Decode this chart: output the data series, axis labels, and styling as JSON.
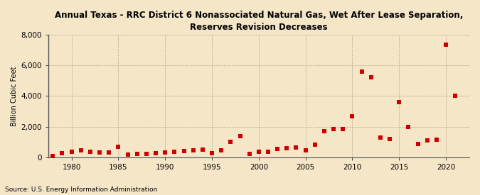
{
  "title": "Annual Texas - RRC District 6 Nonassociated Natural Gas, Wet After Lease Separation,\nReserves Revision Decreases",
  "ylabel": "Billion Cubic Feet",
  "source": "Source: U.S. Energy Information Administration",
  "background_color": "#f5e6c8",
  "plot_background_color": "#f5e6c8",
  "marker_color": "#cc0000",
  "marker": "s",
  "marker_size": 4,
  "xlim": [
    1977.5,
    2022.5
  ],
  "ylim": [
    0,
    8000
  ],
  "yticks": [
    0,
    2000,
    4000,
    6000,
    8000
  ],
  "xticks": [
    1980,
    1985,
    1990,
    1995,
    2000,
    2005,
    2010,
    2015,
    2020
  ],
  "years": [
    1978,
    1979,
    1980,
    1981,
    1982,
    1983,
    1984,
    1985,
    1986,
    1987,
    1988,
    1989,
    1990,
    1991,
    1992,
    1993,
    1994,
    1995,
    1996,
    1997,
    1998,
    1999,
    2000,
    2001,
    2002,
    2003,
    2004,
    2005,
    2006,
    2007,
    2008,
    2009,
    2010,
    2011,
    2012,
    2013,
    2014,
    2015,
    2016,
    2017,
    2018,
    2019,
    2020,
    2021
  ],
  "values": [
    100,
    280,
    370,
    430,
    350,
    310,
    290,
    680,
    180,
    230,
    240,
    280,
    310,
    360,
    420,
    450,
    500,
    250,
    450,
    1000,
    1360,
    210,
    340,
    370,
    540,
    600,
    650,
    470,
    800,
    1700,
    1820,
    1860,
    2650,
    5600,
    5200,
    1300,
    1200,
    3600,
    2000,
    850,
    1100,
    1150,
    7350,
    4000
  ]
}
